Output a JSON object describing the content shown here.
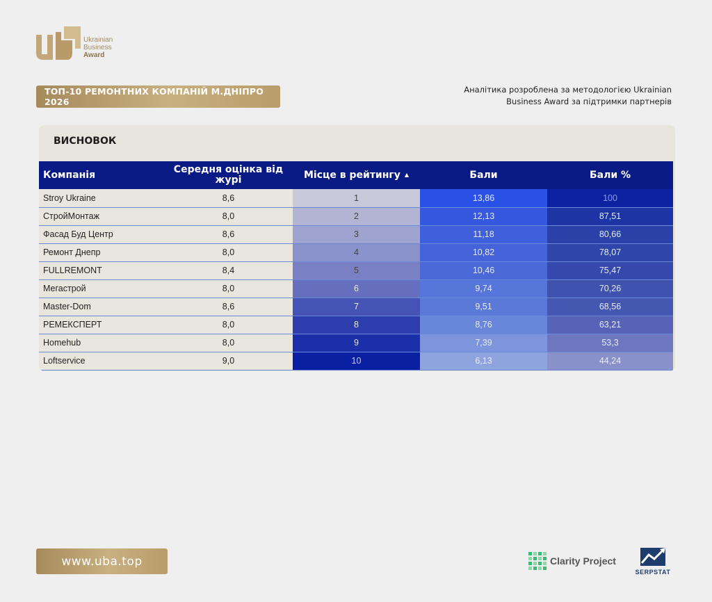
{
  "logo": {
    "line1": "Ukrainian",
    "line2": "Business",
    "line3": "Award"
  },
  "title_badge": "ТОП-10 РЕМОНТНИХ КОМПАНІЙ М.ДНІПРО 2026",
  "analytics_note": {
    "line1": "Аналітика розроблена за методологією Ukrainian",
    "line2": "Business Award за підтримки партнерів"
  },
  "panel": {
    "title": "ВИСНОВОК"
  },
  "table": {
    "headers": {
      "company": "Компанія",
      "score": "Середня оцінка від журі",
      "place": "Місце в рейтингу",
      "points": "Бали",
      "percent": "Бали %"
    },
    "sort_icon": "sort-ascending-icon",
    "rows": [
      {
        "company": "Stroy Ukraine",
        "score": "8,6",
        "place": "1",
        "points": "13,86",
        "percent": "100"
      },
      {
        "company": "СтройМонтаж",
        "score": "8,0",
        "place": "2",
        "points": "12,13",
        "percent": "87,51"
      },
      {
        "company": "Фасад Буд Центр",
        "score": "8,6",
        "place": "3",
        "points": "11,18",
        "percent": "80,66"
      },
      {
        "company": "Ремонт Днепр",
        "score": "8,0",
        "place": "4",
        "points": "10,82",
        "percent": "78,07"
      },
      {
        "company": "FULLREMONT",
        "score": "8,4",
        "place": "5",
        "points": "10,46",
        "percent": "75,47"
      },
      {
        "company": "Мегастрой",
        "score": "8,0",
        "place": "6",
        "points": "9,74",
        "percent": "70,26"
      },
      {
        "company": "Master-Dom",
        "score": "8,6",
        "place": "7",
        "points": "9,51",
        "percent": "68,56"
      },
      {
        "company": "РЕМЕКСПЕРТ",
        "score": "8,0",
        "place": "8",
        "points": "8,76",
        "percent": "63,21"
      },
      {
        "company": "Homehub",
        "score": "8,0",
        "place": "9",
        "points": "7,39",
        "percent": "53,3"
      },
      {
        "company": "Loftservice",
        "score": "9,0",
        "place": "10",
        "points": "6,13",
        "percent": "44,24"
      }
    ]
  },
  "colors": {
    "header_bg": "#0a1a85",
    "gold": "#b99d6c",
    "cell_bg": "#e9e6de"
  },
  "footer": {
    "link": "www.uba.top"
  },
  "partners": {
    "clarity": "Clarity Project",
    "serpstat": "SERPSTAT"
  }
}
